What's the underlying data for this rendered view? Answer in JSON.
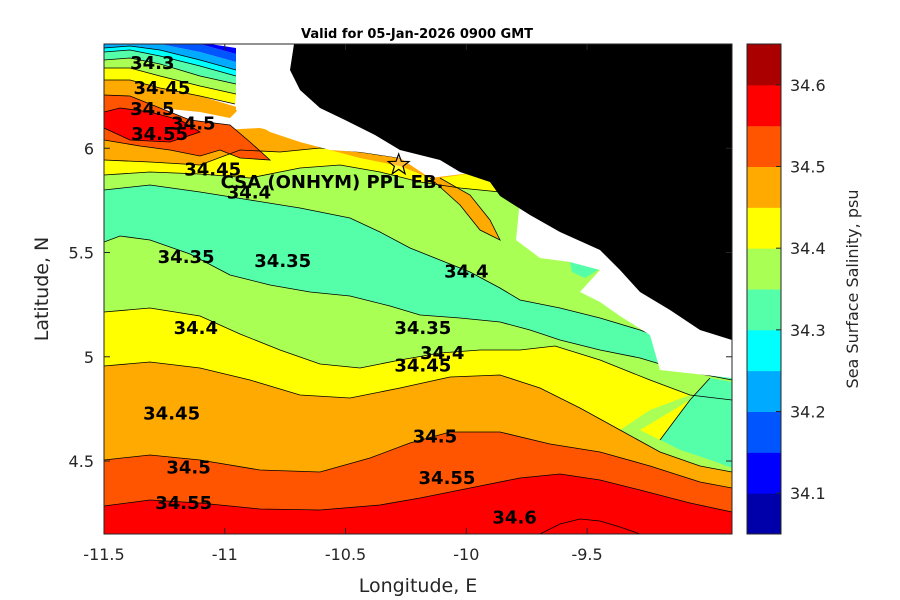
{
  "title": "Valid for 05-Jan-2026 0900 GMT",
  "xlabel": "Longitude, E",
  "ylabel": "Latitude, N",
  "xlim": [
    -11.5,
    -8.9
  ],
  "ylim": [
    4.15,
    6.5
  ],
  "x_ticks": [
    {
      "value": -11.5,
      "label": "-11.5"
    },
    {
      "value": -11,
      "label": "-11"
    },
    {
      "value": -10.5,
      "label": "-10.5"
    },
    {
      "value": -10,
      "label": "-10"
    },
    {
      "value": -9.5,
      "label": "-9.5"
    }
  ],
  "y_ticks": [
    {
      "value": 6,
      "label": "6"
    },
    {
      "value": 5.5,
      "label": "5.5"
    },
    {
      "value": 5,
      "label": "5"
    },
    {
      "value": 4.5,
      "label": "4.5"
    }
  ],
  "colorbar": {
    "label": "Sea Surface Salinity, psu",
    "range": [
      34.05,
      34.65
    ],
    "levels": [
      {
        "from": 34.05,
        "to": 34.1,
        "color": "#0000aa"
      },
      {
        "from": 34.1,
        "to": 34.15,
        "color": "#0000ff"
      },
      {
        "from": 34.15,
        "to": 34.2,
        "color": "#0055ff"
      },
      {
        "from": 34.2,
        "to": 34.25,
        "color": "#00aaff"
      },
      {
        "from": 34.25,
        "to": 34.3,
        "color": "#00ffff"
      },
      {
        "from": 34.3,
        "to": 34.35,
        "color": "#55ffaa"
      },
      {
        "from": 34.35,
        "to": 34.4,
        "color": "#aaff55"
      },
      {
        "from": 34.4,
        "to": 34.45,
        "color": "#ffff00"
      },
      {
        "from": 34.45,
        "to": 34.5,
        "color": "#ffaa00"
      },
      {
        "from": 34.5,
        "to": 34.55,
        "color": "#ff5500"
      },
      {
        "from": 34.55,
        "to": 34.6,
        "color": "#ff0000"
      },
      {
        "from": 34.6,
        "to": 34.65,
        "color": "#aa0000"
      }
    ],
    "ticks": [
      {
        "value": 34.1,
        "label": "34.1"
      },
      {
        "value": 34.2,
        "label": "34.2"
      },
      {
        "value": 34.3,
        "label": "34.3"
      },
      {
        "value": 34.4,
        "label": "34.4"
      },
      {
        "value": 34.5,
        "label": "34.5"
      },
      {
        "value": 34.6,
        "label": "34.6"
      }
    ]
  },
  "colors": {
    "land": "#000000",
    "coast_mask": "#ffffff"
  },
  "site": {
    "label": "CSA (ONHYM) PPL EB.",
    "lon": -10.28,
    "lat": 5.92,
    "symbol": "pentagram"
  },
  "chart_data": {
    "type": "heatmap",
    "title": "Valid for 05-Jan-2026 0900 GMT",
    "xlabel": "Longitude, E",
    "ylabel": "Latitude, N",
    "xlim": [
      -11.5,
      -8.9
    ],
    "ylim": [
      4.15,
      6.5
    ],
    "colorbar_label": "Sea Surface Salinity, psu",
    "contour_levels": [
      34.1,
      34.15,
      34.2,
      34.25,
      34.3,
      34.35,
      34.4,
      34.45,
      34.5,
      34.55,
      34.6
    ],
    "contour_labels": [
      {
        "text": "34.3",
        "lon": -11.3,
        "lat": 6.38
      },
      {
        "text": "34.45",
        "lon": -11.26,
        "lat": 6.26
      },
      {
        "text": "34.5",
        "lon": -11.3,
        "lat": 6.16
      },
      {
        "text": "34.5",
        "lon": -11.13,
        "lat": 6.09
      },
      {
        "text": "34.55",
        "lon": -11.27,
        "lat": 6.04
      },
      {
        "text": "34.45",
        "lon": -11.05,
        "lat": 5.87
      },
      {
        "text": "34.4",
        "lon": -10.9,
        "lat": 5.76
      },
      {
        "text": "34.35",
        "lon": -11.16,
        "lat": 5.45
      },
      {
        "text": "34.35",
        "lon": -10.76,
        "lat": 5.43
      },
      {
        "text": "34.4",
        "lon": -10.0,
        "lat": 5.38
      },
      {
        "text": "34.4",
        "lon": -11.12,
        "lat": 5.11
      },
      {
        "text": "34.35",
        "lon": -10.18,
        "lat": 5.11
      },
      {
        "text": "34.4",
        "lon": -10.1,
        "lat": 4.99
      },
      {
        "text": "34.45",
        "lon": -10.18,
        "lat": 4.93
      },
      {
        "text": "34.45",
        "lon": -11.22,
        "lat": 4.7
      },
      {
        "text": "34.5",
        "lon": -10.13,
        "lat": 4.59
      },
      {
        "text": "34.5",
        "lon": -11.15,
        "lat": 4.44
      },
      {
        "text": "34.55",
        "lon": -10.08,
        "lat": 4.39
      },
      {
        "text": "34.55",
        "lon": -11.17,
        "lat": 4.27
      },
      {
        "text": "34.6",
        "lon": -9.8,
        "lat": 4.2
      }
    ]
  }
}
